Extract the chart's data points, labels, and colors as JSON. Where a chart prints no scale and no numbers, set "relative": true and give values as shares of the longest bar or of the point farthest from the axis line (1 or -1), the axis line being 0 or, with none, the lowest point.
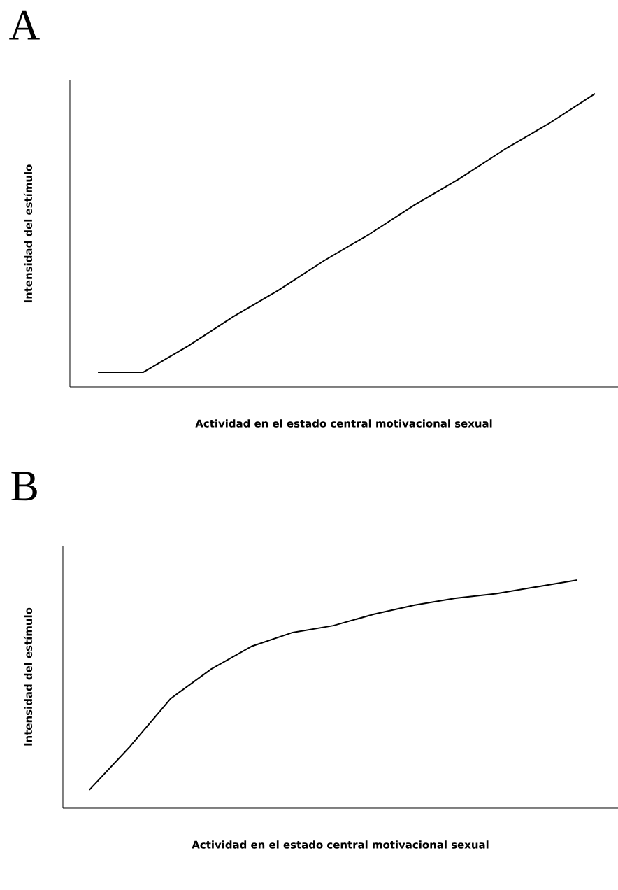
{
  "chart_data": [
    {
      "type": "line",
      "title": "A",
      "xlabel": "Actividad en el estado central motivacional sexual",
      "ylabel": "Intensidad del estímulo",
      "relative": true,
      "color": "#000000",
      "categories": [
        null,
        null,
        null,
        null,
        null,
        null,
        null,
        null,
        null,
        null,
        null,
        null
      ],
      "values": [
        0.05,
        0.05,
        0.14,
        0.24,
        0.33,
        0.43,
        0.52,
        0.62,
        0.71,
        0.81,
        0.9,
        1.0
      ]
    },
    {
      "type": "line",
      "title": "B",
      "xlabel": "Actividad en el estado central motivacional sexual",
      "ylabel": "Intensidad del estímulo",
      "relative": true,
      "color": "#000000",
      "categories": [
        null,
        null,
        null,
        null,
        null,
        null,
        null,
        null,
        null,
        null,
        null,
        null,
        null
      ],
      "values": [
        0.08,
        0.27,
        0.48,
        0.61,
        0.71,
        0.77,
        0.8,
        0.85,
        0.89,
        0.92,
        0.94,
        0.97,
        1.0
      ]
    }
  ]
}
